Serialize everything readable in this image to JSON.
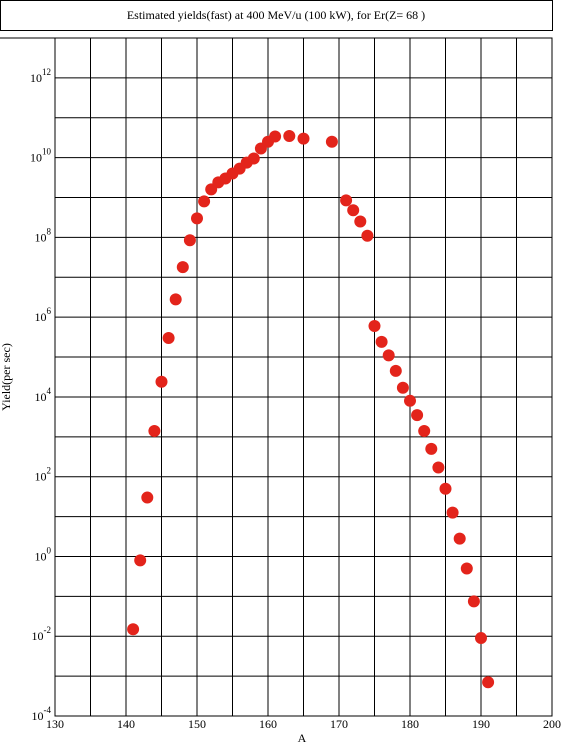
{
  "chart_data": {
    "type": "scatter",
    "title": "Estimated yields(fast) at 400 MeV/u (100 kW), for Er(Z= 68 )",
    "x_label": "A",
    "y_label": "Yield(per sec)",
    "log_y": true,
    "grid": true,
    "color": "#e3241b",
    "xlim": [
      130,
      200
    ],
    "xticks": [
      130,
      140,
      150,
      160,
      170,
      180,
      190,
      200
    ],
    "minor_xticks": [
      135,
      145,
      155,
      165,
      175,
      185,
      195
    ],
    "ylim": [
      0.0001,
      10000000000000
    ],
    "yticks": [
      {
        "value": 0.0001,
        "label": "10",
        "exponent": "-4"
      },
      {
        "value": 0.01,
        "label": "10",
        "exponent": "-2"
      },
      {
        "value": 1,
        "label": "10",
        "exponent": "0"
      },
      {
        "value": 100,
        "label": "10",
        "exponent": "2"
      },
      {
        "value": 10000,
        "label": "10",
        "exponent": "4"
      },
      {
        "value": 1000000,
        "label": "10",
        "exponent": "6"
      },
      {
        "value": 100000000,
        "label": "10",
        "exponent": "8"
      },
      {
        "value": 10000000000,
        "label": "10",
        "exponent": "10"
      },
      {
        "value": 1000000000000,
        "label": "10",
        "exponent": "12"
      }
    ],
    "minor_yticks": [
      0.001,
      0.1,
      10,
      1000,
      100000,
      10000000,
      1000000000,
      100000000000,
      10000000000000
    ],
    "x": [
      141,
      142,
      143,
      144,
      145,
      146,
      147,
      148,
      149,
      150,
      151,
      152,
      153,
      154,
      155,
      156,
      157,
      158,
      159,
      160,
      161,
      163,
      165,
      169,
      171,
      172,
      173,
      174,
      175,
      176,
      177,
      178,
      179,
      180,
      181,
      182,
      183,
      184,
      185,
      186,
      187,
      188,
      189,
      190,
      191
    ],
    "values": [
      0.015,
      0.8,
      30,
      1400,
      24000,
      300000,
      2800000,
      18000000,
      85000000,
      300000000,
      800000000,
      1600000000,
      2400000000,
      3000000000,
      4000000000,
      5300000000,
      7500000000,
      9500000000,
      17000000000,
      25000000000,
      34000000000,
      35000000000,
      30000000000,
      25000000000,
      850000000,
      480000000,
      250000000,
      110000000,
      600000,
      240000,
      110000,
      45000,
      17000,
      8000,
      3500,
      1400,
      500,
      170,
      50,
      12.6,
      2.8,
      0.5,
      0.075,
      0.009,
      0.0007
    ]
  }
}
